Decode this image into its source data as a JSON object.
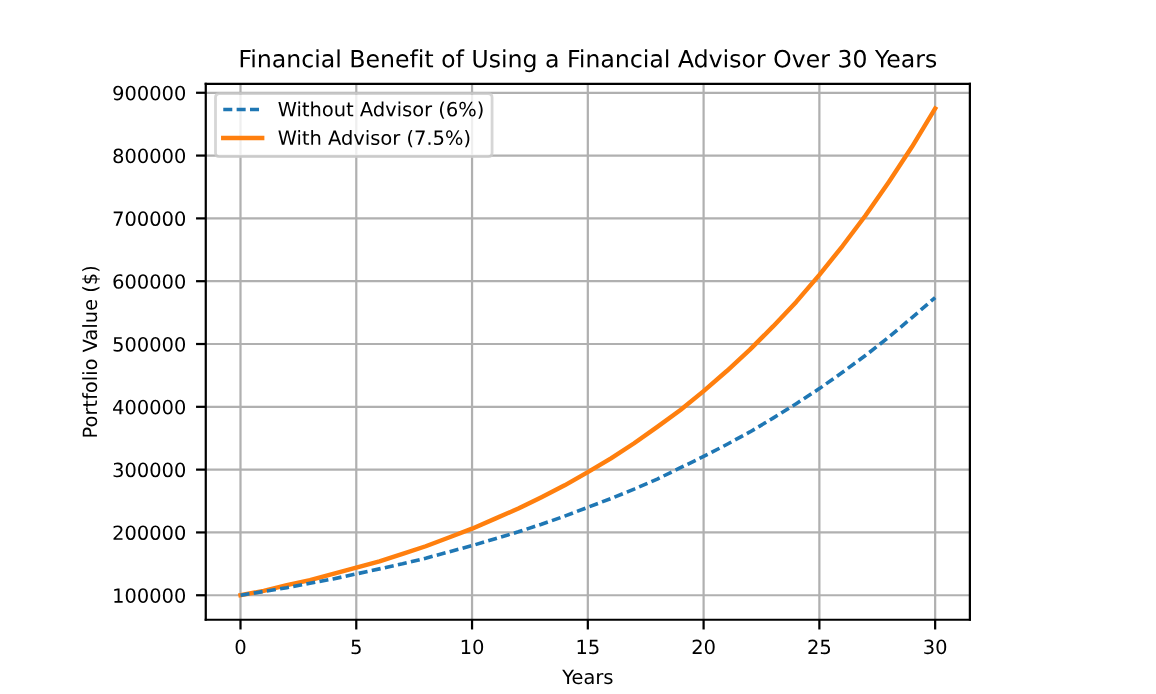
{
  "chart_data": {
    "type": "line",
    "title": "Financial Benefit of Using a Financial Advisor Over 30 Years",
    "xlabel": "Years",
    "ylabel": "Portfolio Value ($)",
    "x": [
      0,
      1,
      2,
      3,
      4,
      5,
      6,
      7,
      8,
      9,
      10,
      11,
      12,
      13,
      14,
      15,
      16,
      17,
      18,
      19,
      20,
      21,
      22,
      23,
      24,
      25,
      26,
      27,
      28,
      29,
      30
    ],
    "series": [
      {
        "name": "Without Advisor (6%)",
        "color": "#1f77b4",
        "line_style": "dashed",
        "values": [
          100000,
          106000,
          112000,
          119000,
          126000,
          134000,
          142000,
          150000,
          159000,
          169000,
          179000,
          190000,
          201000,
          213000,
          226000,
          240000,
          254000,
          269000,
          285000,
          303000,
          321000,
          340000,
          360000,
          382000,
          405000,
          429000,
          455000,
          482000,
          511000,
          542000,
          574000
        ]
      },
      {
        "name": "With Advisor (7.5%)",
        "color": "#ff7f0e",
        "line_style": "solid",
        "values": [
          100000,
          107000,
          116000,
          124000,
          134000,
          144000,
          154000,
          166000,
          178000,
          192000,
          206000,
          222000,
          238000,
          256000,
          275000,
          296000,
          318000,
          342000,
          368000,
          395000,
          425000,
          457000,
          491000,
          528000,
          567000,
          610000,
          656000,
          705000,
          758000,
          814000,
          875000
        ]
      }
    ],
    "xlim": [
      -1.5,
      31.5
    ],
    "ylim": [
      61000,
      914000
    ],
    "xticks": [
      0,
      5,
      10,
      15,
      20,
      25,
      30
    ],
    "yticks": [
      100000,
      200000,
      300000,
      400000,
      500000,
      600000,
      700000,
      800000,
      900000
    ],
    "grid": true,
    "legend": "top left",
    "marker": "none"
  }
}
